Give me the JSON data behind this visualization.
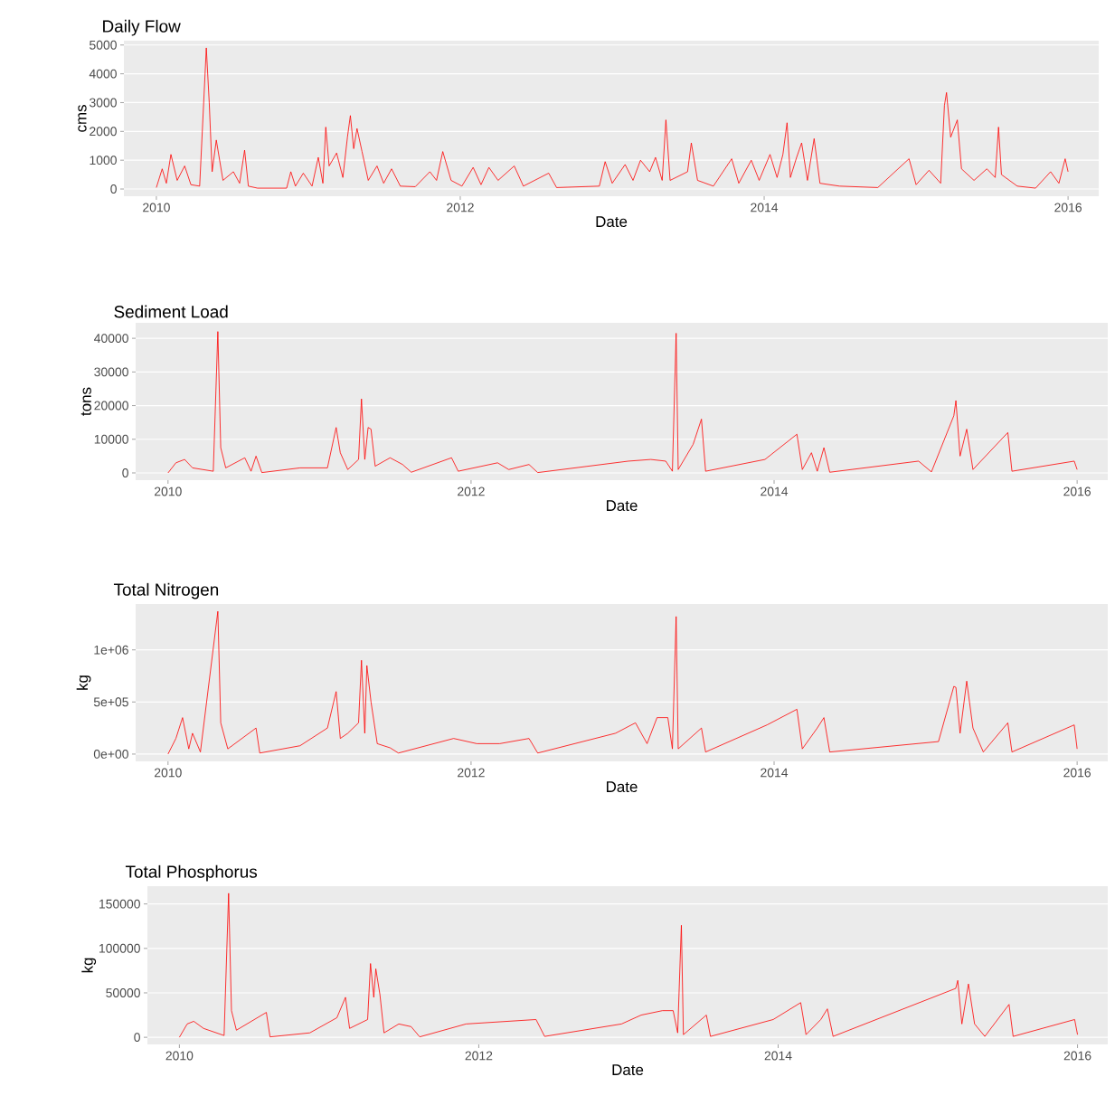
{
  "chart_data": [
    {
      "type": "line",
      "title": "Daily Flow",
      "xlabel": "Date",
      "ylabel": "cms",
      "grid": "y",
      "xlim": [
        "2009-10-15",
        "2016-03-15"
      ],
      "xticks": [
        "2010",
        "2012",
        "2014",
        "2016"
      ],
      "ylim": [
        -250,
        5150
      ],
      "yticks": [
        0,
        1000,
        2000,
        3000,
        4000,
        5000
      ],
      "x": [
        "2010-01-01",
        "2010-01-15",
        "2010-01-25",
        "2010-02-05",
        "2010-02-20",
        "2010-03-10",
        "2010-03-25",
        "2010-04-15",
        "2010-05-01",
        "2010-05-08",
        "2010-05-15",
        "2010-05-25",
        "2010-06-10",
        "2010-07-05",
        "2010-07-20",
        "2010-08-01",
        "2010-08-10",
        "2010-09-01",
        "2010-11-10",
        "2010-11-20",
        "2010-12-01",
        "2010-12-20",
        "2011-01-10",
        "2011-01-25",
        "2011-02-05",
        "2011-02-12",
        "2011-02-20",
        "2011-03-10",
        "2011-03-25",
        "2011-04-05",
        "2011-04-12",
        "2011-04-20",
        "2011-04-28",
        "2011-05-10",
        "2011-05-25",
        "2011-06-15",
        "2011-07-01",
        "2011-07-20",
        "2011-08-10",
        "2011-09-15",
        "2011-10-20",
        "2011-11-05",
        "2011-11-20",
        "2011-12-10",
        "2012-01-05",
        "2012-02-01",
        "2012-02-20",
        "2012-03-10",
        "2012-04-01",
        "2012-05-10",
        "2012-06-01",
        "2012-08-01",
        "2012-08-20",
        "2012-12-01",
        "2012-12-15",
        "2013-01-01",
        "2013-02-01",
        "2013-02-20",
        "2013-03-10",
        "2013-04-01",
        "2013-04-15",
        "2013-05-01",
        "2013-05-10",
        "2013-05-20",
        "2013-07-01",
        "2013-07-10",
        "2013-07-25",
        "2013-09-01",
        "2013-10-15",
        "2013-11-01",
        "2013-12-01",
        "2013-12-20",
        "2014-01-15",
        "2014-02-01",
        "2014-02-15",
        "2014-02-25",
        "2014-03-05",
        "2014-03-20",
        "2014-04-01",
        "2014-04-15",
        "2014-05-01",
        "2014-05-15",
        "2014-07-01",
        "2014-10-01",
        "2014-12-15",
        "2015-01-01",
        "2015-02-01",
        "2015-03-01",
        "2015-03-10",
        "2015-03-15",
        "2015-03-25",
        "2015-04-10",
        "2015-04-20",
        "2015-05-20",
        "2015-06-20",
        "2015-07-10",
        "2015-07-18",
        "2015-07-25",
        "2015-09-01",
        "2015-10-15",
        "2015-11-20",
        "2015-12-10",
        "2015-12-25",
        "2016-01-01"
      ],
      "series": [
        {
          "color": "#ff0000",
          "values": [
            50,
            700,
            200,
            1200,
            300,
            800,
            150,
            100,
            4900,
            3000,
            600,
            1700,
            300,
            600,
            200,
            1350,
            100,
            30,
            30,
            600,
            100,
            550,
            100,
            1100,
            200,
            2150,
            800,
            1250,
            400,
            1800,
            2550,
            1400,
            2100,
            1300,
            300,
            800,
            200,
            700,
            100,
            80,
            600,
            300,
            1300,
            300,
            100,
            750,
            150,
            750,
            300,
            800,
            100,
            550,
            50,
            100,
            950,
            200,
            850,
            300,
            1000,
            600,
            1100,
            300,
            2400,
            300,
            600,
            1600,
            300,
            100,
            1050,
            200,
            1000,
            300,
            1200,
            400,
            1200,
            2300,
            400,
            1100,
            1600,
            300,
            1750,
            200,
            100,
            50,
            1050,
            150,
            650,
            200,
            2900,
            3350,
            1800,
            2400,
            700,
            300,
            700,
            400,
            2150,
            500,
            100,
            30,
            600,
            200,
            1050,
            600
          ]
        }
      ]
    },
    {
      "type": "line",
      "title": "Sediment Load",
      "xlabel": "Date",
      "ylabel": "tons",
      "grid": "y",
      "xlim": [
        "2009-10-15",
        "2016-03-15"
      ],
      "xticks": [
        "2010",
        "2012",
        "2014",
        "2016"
      ],
      "ylim": [
        -2150,
        44600
      ],
      "yticks": [
        0,
        10000,
        20000,
        30000,
        40000
      ],
      "x": [
        "2010-01-01",
        "2010-01-20",
        "2010-02-10",
        "2010-03-01",
        "2010-04-20",
        "2010-05-01",
        "2010-05-08",
        "2010-05-20",
        "2010-07-05",
        "2010-07-20",
        "2010-08-01",
        "2010-08-15",
        "2010-11-15",
        "2011-01-20",
        "2011-02-10",
        "2011-02-20",
        "2011-03-10",
        "2011-04-05",
        "2011-04-12",
        "2011-04-20",
        "2011-04-28",
        "2011-05-05",
        "2011-05-15",
        "2011-06-20",
        "2011-07-20",
        "2011-08-10",
        "2011-11-15",
        "2011-12-01",
        "2012-03-05",
        "2012-04-01",
        "2012-05-20",
        "2012-06-10",
        "2013-01-15",
        "2013-03-10",
        "2013-04-15",
        "2013-05-01",
        "2013-05-10",
        "2013-05-15",
        "2013-06-20",
        "2013-07-10",
        "2013-07-20",
        "2013-12-10",
        "2014-02-25",
        "2014-03-10",
        "2014-04-01",
        "2014-04-15",
        "2014-05-01",
        "2014-05-15",
        "2014-12-15",
        "2015-01-15",
        "2015-03-10",
        "2015-03-15",
        "2015-03-25",
        "2015-04-10",
        "2015-04-25",
        "2015-07-18",
        "2015-07-28",
        "2015-12-25",
        "2016-01-01"
      ],
      "series": [
        {
          "color": "#ff0000",
          "values": [
            0,
            3000,
            4000,
            1500,
            500,
            42000,
            7500,
            1500,
            4500,
            500,
            5000,
            100,
            1500,
            1500,
            13500,
            6000,
            1000,
            4000,
            22000,
            4000,
            13500,
            13000,
            2000,
            4500,
            2500,
            200,
            4500,
            500,
            3000,
            1000,
            2500,
            100,
            3500,
            4000,
            3500,
            500,
            41500,
            1000,
            8500,
            16000,
            500,
            4000,
            11500,
            1000,
            6000,
            500,
            7500,
            200,
            3500,
            300,
            17000,
            21500,
            5000,
            13000,
            1000,
            12000,
            500,
            3500,
            1000
          ]
        }
      ]
    },
    {
      "type": "line",
      "title": "Total Nitrogen",
      "xlabel": "Date",
      "ylabel": "kg",
      "grid": "y",
      "xlim": [
        "2009-10-15",
        "2016-03-15"
      ],
      "xticks": [
        "2010",
        "2012",
        "2014",
        "2016"
      ],
      "ylim": [
        -70000,
        1440000
      ],
      "yticks": [
        {
          "value": 0,
          "label": "0e+00"
        },
        {
          "value": 500000,
          "label": "5e+05"
        },
        {
          "value": 1000000,
          "label": "1e+06"
        }
      ],
      "x": [
        "2010-01-01",
        "2010-01-20",
        "2010-02-05",
        "2010-02-20",
        "2010-03-01",
        "2010-03-20",
        "2010-05-01",
        "2010-05-08",
        "2010-05-25",
        "2010-08-01",
        "2010-08-10",
        "2010-11-15",
        "2011-01-20",
        "2011-02-10",
        "2011-02-20",
        "2011-03-10",
        "2011-04-05",
        "2011-04-12",
        "2011-04-20",
        "2011-04-25",
        "2011-05-05",
        "2011-05-20",
        "2011-06-20",
        "2011-07-10",
        "2011-11-20",
        "2012-01-15",
        "2012-03-10",
        "2012-05-20",
        "2012-06-10",
        "2012-12-15",
        "2013-02-01",
        "2013-03-01",
        "2013-03-25",
        "2013-04-20",
        "2013-05-01",
        "2013-05-10",
        "2013-05-15",
        "2013-07-10",
        "2013-07-20",
        "2013-12-15",
        "2014-02-25",
        "2014-03-10",
        "2014-04-15",
        "2014-05-01",
        "2014-05-15",
        "2015-02-01",
        "2015-03-10",
        "2015-03-15",
        "2015-03-25",
        "2015-04-10",
        "2015-04-25",
        "2015-05-20",
        "2015-07-18",
        "2015-07-28",
        "2015-12-25",
        "2016-01-01"
      ],
      "series": [
        {
          "color": "#ff0000",
          "values": [
            0,
            150000,
            350000,
            50000,
            200000,
            20000,
            1370000,
            300000,
            50000,
            250000,
            10000,
            80000,
            250000,
            600000,
            150000,
            200000,
            300000,
            900000,
            200000,
            850000,
            500000,
            100000,
            60000,
            10000,
            150000,
            100000,
            100000,
            150000,
            10000,
            200000,
            300000,
            100000,
            350000,
            350000,
            50000,
            1320000,
            50000,
            250000,
            20000,
            280000,
            430000,
            50000,
            250000,
            350000,
            20000,
            120000,
            650000,
            640000,
            200000,
            700000,
            250000,
            20000,
            300000,
            20000,
            280000,
            50000
          ]
        }
      ]
    },
    {
      "type": "line",
      "title": "Total Phosphorus",
      "xlabel": "Date",
      "ylabel": "kg",
      "grid": "y",
      "xlim": [
        "2009-10-15",
        "2016-03-15"
      ],
      "xticks": [
        "2010",
        "2012",
        "2014",
        "2016"
      ],
      "ylim": [
        -8000,
        170000
      ],
      "yticks": [
        0,
        50000,
        100000,
        150000
      ],
      "x": [
        "2010-01-01",
        "2010-01-20",
        "2010-02-05",
        "2010-03-01",
        "2010-04-20",
        "2010-05-01",
        "2010-05-08",
        "2010-05-20",
        "2010-08-01",
        "2010-08-10",
        "2010-11-15",
        "2011-01-20",
        "2011-02-10",
        "2011-02-20",
        "2011-04-05",
        "2011-04-12",
        "2011-04-20",
        "2011-04-25",
        "2011-05-05",
        "2011-05-15",
        "2011-06-20",
        "2011-07-20",
        "2011-08-10",
        "2011-12-01",
        "2012-05-20",
        "2012-06-10",
        "2012-12-15",
        "2013-02-01",
        "2013-03-25",
        "2013-04-20",
        "2013-05-01",
        "2013-05-10",
        "2013-05-15",
        "2013-07-10",
        "2013-07-20",
        "2013-12-20",
        "2014-02-25",
        "2014-03-10",
        "2014-04-15",
        "2014-05-01",
        "2014-05-15",
        "2015-03-10",
        "2015-03-15",
        "2015-03-25",
        "2015-04-10",
        "2015-04-25",
        "2015-05-20",
        "2015-07-18",
        "2015-07-28",
        "2015-12-25",
        "2016-01-01"
      ],
      "series": [
        {
          "color": "#ff0000",
          "values": [
            0,
            15000,
            18000,
            10000,
            2000,
            162000,
            30000,
            8000,
            28000,
            500,
            5000,
            22000,
            45000,
            10000,
            20000,
            83000,
            45000,
            77000,
            48000,
            5000,
            15000,
            12000,
            500,
            15000,
            20000,
            1000,
            15000,
            25000,
            30000,
            30000,
            5000,
            126000,
            3000,
            25000,
            1000,
            20000,
            39000,
            3000,
            20000,
            32000,
            1000,
            55000,
            64000,
            15000,
            60000,
            15000,
            1000,
            37000,
            1000,
            20000,
            3000
          ]
        }
      ]
    }
  ]
}
